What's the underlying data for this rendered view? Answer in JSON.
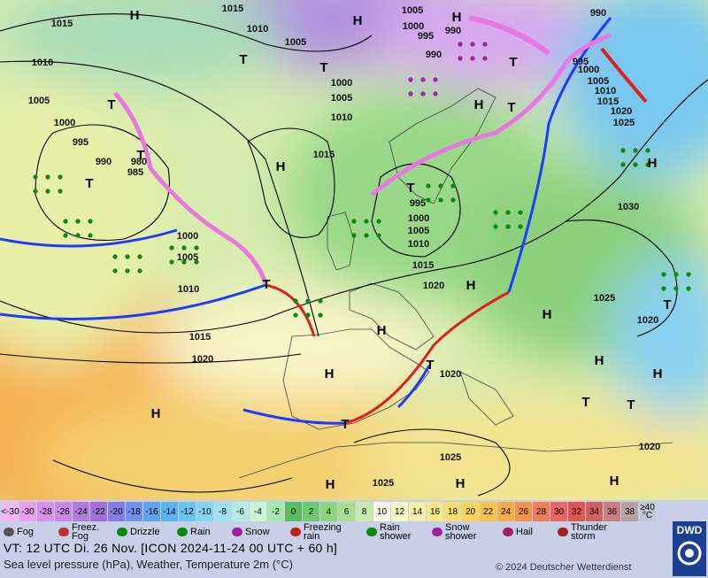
{
  "map": {
    "pressure_labels": [
      "1015",
      "1015",
      "1010",
      "1005",
      "1005",
      "1000",
      "995",
      "990",
      "990",
      "990",
      "1010",
      "1005",
      "1000",
      "995",
      "990",
      "985",
      "980",
      "1000",
      "1005",
      "1010",
      "1015",
      "995",
      "1000",
      "1005",
      "1010",
      "1015",
      "1020",
      "1000",
      "1005",
      "1010",
      "1015",
      "1020",
      "995",
      "1000",
      "1005",
      "1010",
      "1015",
      "1020",
      "1025",
      "1030",
      "1025",
      "1020",
      "1020",
      "1025",
      "1025",
      "1020"
    ],
    "centers": [
      "H",
      "H",
      "H",
      "T",
      "T",
      "T",
      "T",
      "H",
      "T",
      "T",
      "H",
      "H",
      "T",
      "T",
      "T",
      "H",
      "H",
      "H",
      "T",
      "H",
      "H",
      "T",
      "H",
      "H",
      "T",
      "T",
      "H",
      "T",
      "H",
      "H",
      "H"
    ]
  },
  "temperature_scale": {
    "labels": [
      "<-30",
      "-30",
      "-28",
      "-26",
      "-24",
      "-22",
      "-20",
      "-18",
      "-16",
      "-14",
      "-12",
      "-10",
      "-8",
      "-6",
      "-4",
      "-2",
      "0",
      "2",
      "4",
      "6",
      "8",
      "10",
      "12",
      "14",
      "16",
      "18",
      "20",
      "22",
      "24",
      "26",
      "28",
      "30",
      "32",
      "34",
      "36",
      "38",
      "≥40 °C"
    ],
    "colors": [
      "#f4b8f4",
      "#e8a0f0",
      "#d890ec",
      "#c888e4",
      "#b47cdc",
      "#a070d8",
      "#8080e4",
      "#7090ec",
      "#60a4f0",
      "#58b4f4",
      "#68c4f4",
      "#84d4f4",
      "#a0e0f0",
      "#b4ece4",
      "#c8f4d8",
      "#a8e8b0",
      "#5cbc5c",
      "#70c870",
      "#8cd480",
      "#a8e090",
      "#c8ecac",
      "#fafae8",
      "#f8f8c8",
      "#f8f0a8",
      "#f8e888",
      "#f8e070",
      "#f8d458",
      "#f8c448",
      "#f8ac44",
      "#f49444",
      "#f07c58",
      "#ec6464",
      "#e05454",
      "#d06060",
      "#c88080",
      "#b8a0a0",
      "#c0c8d8"
    ]
  },
  "legend": [
    "Fog",
    "Freez. Fog",
    "Drizzle",
    "Rain",
    "Snow",
    "Freezing rain",
    "Rain shower",
    "Snow shower",
    "Hail",
    "Thunder storm"
  ],
  "footer": {
    "valid_time": "VT: 12 UTC Di.  26 Nov. [ICON 2024-11-24  00 UTC + 60 h]",
    "description": "Sea level pressure (hPa), Weather, Temperature 2m (°C)",
    "copyright": "© 2024 Deutscher Wetterdienst",
    "logo": "DWD"
  }
}
